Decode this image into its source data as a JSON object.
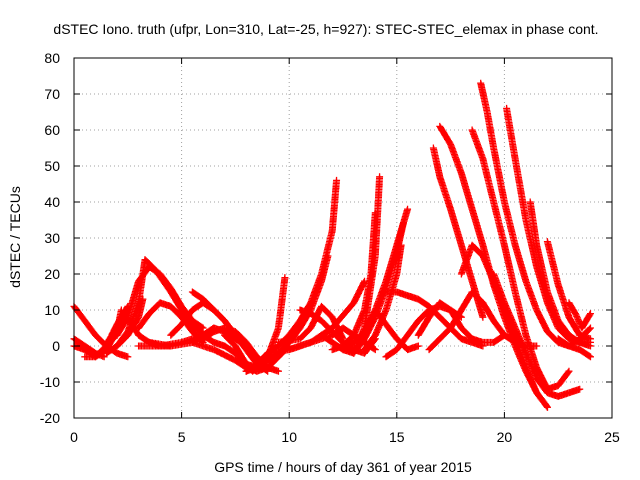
{
  "chart_data": {
    "type": "scatter",
    "title": "dSTEC Iono. truth (ufpr, Lon=310, Lat=-25, h=927): STEC-STEC_elemax in phase cont.",
    "xlabel": "GPS time / hours of day 361 of year 2015",
    "ylabel": "dSTEC  / TECUs",
    "xlim": [
      0,
      25
    ],
    "ylim": [
      -20,
      80
    ],
    "xticks": [
      0,
      5,
      10,
      15,
      20,
      25
    ],
    "yticks": [
      -20,
      -10,
      0,
      10,
      20,
      30,
      40,
      50,
      60,
      70,
      80
    ],
    "grid": true,
    "marker": "plus",
    "color": "#ff0000",
    "series": [
      {
        "x": [
          0.0,
          0.5,
          1.0,
          1.5,
          2.0,
          2.5
        ],
        "y": [
          11,
          7,
          3,
          0,
          -2,
          -3
        ]
      },
      {
        "x": [
          0.0,
          0.5,
          1.0,
          1.4
        ],
        "y": [
          2,
          0,
          -2,
          -3
        ]
      },
      {
        "x": [
          0.0,
          0.5,
          1.0,
          1.5,
          2.0,
          2.2
        ],
        "y": [
          0,
          -1,
          -3,
          -1,
          4,
          10
        ]
      },
      {
        "x": [
          0.5,
          1.0,
          1.5,
          2.0,
          2.5
        ],
        "y": [
          -3,
          -3,
          0,
          6,
          11
        ]
      },
      {
        "x": [
          1.5,
          2.0,
          2.5,
          3.0,
          3.2
        ],
        "y": [
          -2,
          0,
          3,
          8,
          13
        ]
      },
      {
        "x": [
          2.0,
          2.3,
          2.7,
          3.0,
          3.5,
          4.0,
          4.5
        ],
        "y": [
          3,
          9,
          6,
          3,
          1,
          0,
          0
        ]
      },
      {
        "x": [
          1.5,
          2.0,
          2.5,
          3.0,
          3.5,
          4.0,
          4.5,
          5.0,
          5.5,
          6.0
        ],
        "y": [
          1,
          3,
          8,
          18,
          22,
          20,
          16,
          11,
          7,
          5
        ]
      },
      {
        "x": [
          2.0,
          2.5,
          3.0,
          3.3,
          3.8,
          4.5,
          5.0,
          5.5,
          6.0,
          6.5,
          7.0
        ],
        "y": [
          0,
          4,
          12,
          24,
          21,
          15,
          10,
          6,
          3,
          1,
          0
        ]
      },
      {
        "x": [
          3.0,
          3.5,
          4.0,
          4.5,
          5.0,
          5.5,
          6.0
        ],
        "y": [
          5,
          9,
          12,
          11,
          8,
          4,
          1
        ]
      },
      {
        "x": [
          3.0,
          4.0,
          5.0,
          6.0,
          6.5
        ],
        "y": [
          0,
          0,
          1,
          3,
          5
        ]
      },
      {
        "x": [
          3.5,
          4.5,
          5.5,
          6.0,
          6.5,
          7.0,
          7.5,
          8.0
        ],
        "y": [
          1,
          0,
          1,
          3,
          5,
          4,
          2,
          0
        ]
      },
      {
        "x": [
          4.5,
          5.0,
          5.5,
          6.0,
          6.5,
          7.0,
          7.5,
          8.0,
          8.5
        ],
        "y": [
          3,
          6,
          10,
          12,
          10,
          7,
          3,
          0,
          -3
        ]
      },
      {
        "x": [
          5.5,
          6.0,
          6.5,
          7.0,
          7.5,
          8.0,
          8.5,
          9.0
        ],
        "y": [
          15,
          13,
          10,
          7,
          3,
          -1,
          -5,
          -7
        ]
      },
      {
        "x": [
          6.0,
          6.5,
          7.0,
          7.5,
          8.0,
          8.5,
          9.0,
          9.5
        ],
        "y": [
          2,
          4,
          5,
          4,
          1,
          -3,
          -6,
          -7
        ]
      },
      {
        "x": [
          5.5,
          6.5,
          7.5,
          8.0,
          8.5
        ],
        "y": [
          1,
          -1,
          -4,
          -6,
          -7
        ]
      },
      {
        "x": [
          7.0,
          7.5,
          8.0,
          8.3,
          8.6,
          9.0
        ],
        "y": [
          3,
          0,
          -5,
          -7,
          -5,
          -2
        ]
      },
      {
        "x": [
          7.0,
          7.5,
          8.0,
          8.5,
          9.0,
          9.5,
          10.0
        ],
        "y": [
          0,
          -2,
          -5,
          -7,
          -6,
          -3,
          0
        ]
      },
      {
        "x": [
          8.0,
          8.5,
          9.0,
          9.5,
          9.8
        ],
        "y": [
          -5,
          -6,
          -3,
          5,
          19
        ]
      },
      {
        "x": [
          8.0,
          8.5,
          9.0,
          9.5,
          10.0,
          10.5,
          11.0,
          11.5,
          12.0,
          12.2
        ],
        "y": [
          -7,
          -5,
          -2,
          0,
          3,
          7,
          12,
          20,
          32,
          46
        ]
      },
      {
        "x": [
          8.0,
          8.5,
          9.0,
          9.5,
          10.0,
          10.5,
          11.0,
          11.5,
          11.8
        ],
        "y": [
          -7,
          -6,
          -4,
          -2,
          1,
          5,
          10,
          18,
          25
        ]
      },
      {
        "x": [
          9.0,
          10.0,
          11.0,
          12.0,
          12.5,
          13.0,
          13.5,
          14.0
        ],
        "y": [
          -2,
          -1,
          1,
          3,
          5,
          3,
          1,
          -1
        ]
      },
      {
        "x": [
          9.5,
          10.5,
          11.0,
          11.5,
          12.0,
          12.5
        ],
        "y": [
          1,
          2,
          5,
          11,
          8,
          2
        ]
      },
      {
        "x": [
          10.0,
          11.0,
          12.0,
          13.0,
          13.5
        ],
        "y": [
          -1,
          1,
          5,
          12,
          18
        ]
      },
      {
        "x": [
          10.5,
          11.0,
          11.5,
          12.0,
          12.5,
          13.0,
          13.5,
          14.0
        ],
        "y": [
          10,
          9,
          7,
          4,
          1,
          -1,
          -2,
          2
        ]
      },
      {
        "x": [
          11.5,
          12.0,
          12.5,
          13.0,
          13.5,
          14.0,
          14.2
        ],
        "y": [
          3,
          1,
          -1,
          -2,
          5,
          25,
          47
        ]
      },
      {
        "x": [
          12.0,
          12.5,
          13.0,
          13.5,
          13.8,
          14.0
        ],
        "y": [
          -1,
          0,
          3,
          10,
          20,
          37
        ]
      },
      {
        "x": [
          12.5,
          13.0,
          13.5,
          14.0,
          14.5,
          15.0,
          15.5
        ],
        "y": [
          -1,
          1,
          4,
          10,
          18,
          28,
          38
        ]
      },
      {
        "x": [
          13.0,
          13.5,
          14.0,
          14.5,
          15.0,
          15.3
        ],
        "y": [
          -2,
          2,
          8,
          16,
          26,
          34
        ]
      },
      {
        "x": [
          13.5,
          14.0,
          14.5,
          15.0,
          15.2
        ],
        "y": [
          -1,
          3,
          10,
          20,
          28
        ]
      },
      {
        "x": [
          14.0,
          14.5,
          15.0,
          15.5,
          16.0
        ],
        "y": [
          10,
          6,
          2,
          -1,
          0
        ]
      },
      {
        "x": [
          14.5,
          15.0,
          15.5,
          16.0,
          16.5,
          17.0,
          17.5,
          18.0,
          18.5,
          19.0
        ],
        "y": [
          15,
          15,
          14,
          13,
          11,
          8,
          5,
          2,
          1,
          0
        ]
      },
      {
        "x": [
          14.5,
          15.0,
          15.5,
          16.0,
          16.5,
          17.0,
          17.5,
          18.0
        ],
        "y": [
          -3,
          -1,
          3,
          7,
          10,
          11,
          10,
          8
        ]
      },
      {
        "x": [
          16.0,
          16.5,
          17.0,
          17.5,
          18.0,
          18.5,
          19.0,
          19.5,
          20.0
        ],
        "y": [
          3,
          8,
          12,
          10,
          5,
          2,
          1,
          1,
          3
        ]
      },
      {
        "x": [
          16.5,
          17.0,
          17.5,
          18.0,
          18.5,
          19.0,
          19.5,
          20.0,
          20.5,
          21.0,
          21.5
        ],
        "y": [
          -1,
          2,
          5,
          10,
          15,
          12,
          7,
          3,
          1,
          0,
          0
        ]
      },
      {
        "x": [
          16.7,
          17.0,
          17.5,
          18.0,
          18.5,
          19.0
        ],
        "y": [
          55,
          47,
          38,
          28,
          18,
          8
        ]
      },
      {
        "x": [
          17.0,
          17.5,
          18.0,
          18.5,
          19.0,
          19.5,
          20.0,
          20.5,
          21.0,
          21.5,
          22.0
        ],
        "y": [
          61,
          56,
          48,
          38,
          28,
          17,
          8,
          0,
          -7,
          -13,
          -17
        ]
      },
      {
        "x": [
          18.0,
          18.5,
          19.0,
          19.5,
          20.0,
          20.5,
          21.0,
          21.5,
          22.0
        ],
        "y": [
          20,
          28,
          25,
          18,
          10,
          2,
          -6,
          -13,
          -17
        ]
      },
      {
        "x": [
          18.5,
          19.0,
          19.5,
          20.0,
          20.5,
          21.0,
          21.5,
          22.0,
          22.5,
          23.0
        ],
        "y": [
          60,
          52,
          40,
          28,
          15,
          3,
          -6,
          -12,
          -11,
          -7
        ]
      },
      {
        "x": [
          18.9,
          19.2,
          19.5,
          20.0,
          20.5,
          21.0,
          21.5,
          22.0,
          22.5,
          23.0,
          23.5,
          24.0
        ],
        "y": [
          73,
          65,
          55,
          40,
          28,
          18,
          10,
          4,
          1,
          0,
          -1,
          -3
        ]
      },
      {
        "x": [
          19.5,
          20.0,
          20.5,
          21.0,
          21.5,
          22.0,
          22.5,
          23.0,
          23.5
        ],
        "y": [
          20,
          12,
          5,
          -2,
          -9,
          -13,
          -14,
          -13,
          -12
        ]
      },
      {
        "x": [
          20.1,
          20.5,
          21.0,
          21.5,
          22.0,
          22.5,
          23.0,
          23.5,
          24.0
        ],
        "y": [
          66,
          52,
          35,
          22,
          12,
          5,
          2,
          1,
          1
        ]
      },
      {
        "x": [
          21.2,
          21.5,
          22.0,
          22.5,
          23.0,
          23.5,
          24.0
        ],
        "y": [
          40,
          28,
          15,
          7,
          3,
          1,
          0
        ]
      },
      {
        "x": [
          22.0,
          22.5,
          23.0,
          23.5,
          24.0
        ],
        "y": [
          29,
          17,
          8,
          3,
          2
        ]
      },
      {
        "x": [
          22.5,
          23.0,
          23.5,
          24.0
        ],
        "y": [
          2,
          0,
          2,
          5
        ]
      },
      {
        "x": [
          23.0,
          23.3,
          23.6,
          24.0
        ],
        "y": [
          12,
          9,
          5,
          9
        ]
      }
    ]
  }
}
